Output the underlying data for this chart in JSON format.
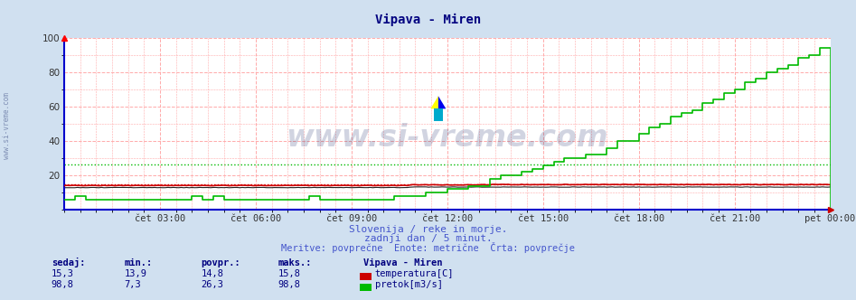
{
  "title": "Vipava - Miren",
  "title_color": "#000080",
  "bg_color": "#d0e0f0",
  "plot_bg_color": "#ffffff",
  "x_tick_labels": [
    "čet 03:00",
    "čet 06:00",
    "čet 09:00",
    "čet 12:00",
    "čet 15:00",
    "čet 18:00",
    "čet 21:00",
    "pet 00:00"
  ],
  "x_tick_positions": [
    36,
    72,
    108,
    144,
    180,
    216,
    252,
    288
  ],
  "ylim": [
    0,
    100
  ],
  "xlim": [
    0,
    288
  ],
  "y_ticks": [
    20,
    40,
    60,
    80,
    100
  ],
  "grid_color": "#ffaaaa",
  "hline_color_temp": "#dd0000",
  "hline_color_flow": "#00bb00",
  "hline_temp": 14.8,
  "hline_flow": 26.3,
  "temp_color": "#cc0000",
  "flow_color": "#00bb00",
  "black_color": "#222222",
  "watermark_text": "www.si-vreme.com",
  "watermark_color": "#1a2a6a",
  "watermark_alpha": 0.2,
  "side_text": "www.si-vreme.com",
  "subtitle1": "Slovenija / reke in morje.",
  "subtitle2": "zadnji dan / 5 minut.",
  "subtitle3": "Meritve: povprečne  Enote: metrične  Črta: povprečje",
  "subtitle_color": "#4455cc",
  "legend_title": "Vipava - Miren",
  "info_label_color": "#000080",
  "n_points": 289,
  "values_temp": [
    "15,3",
    "13,9",
    "14,8",
    "15,8"
  ],
  "values_flow": [
    "98,8",
    "7,3",
    "26,3",
    "98,8"
  ],
  "headers": [
    "sedaj:",
    "min.:",
    "povpr.:",
    "maks.:"
  ]
}
